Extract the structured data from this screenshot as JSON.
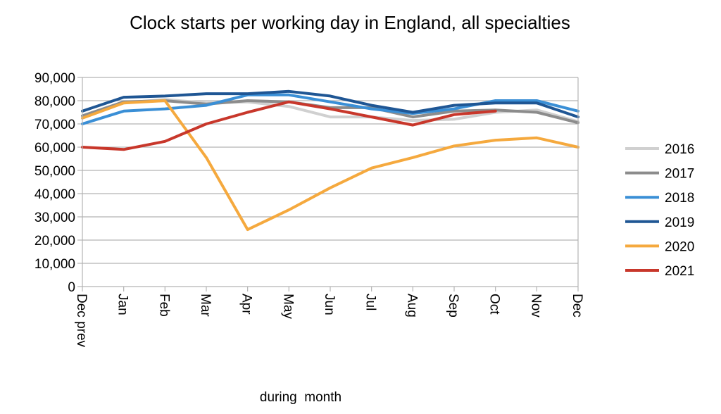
{
  "chart_data": {
    "type": "line",
    "title": "Clock starts per working day in England, all specialties",
    "xlabel": "during  month",
    "ylabel": "",
    "categories": [
      "Dec prev",
      "Jan",
      "Feb",
      "Mar",
      "Apr",
      "May",
      "Jun",
      "Jul",
      "Aug",
      "Sep",
      "Oct",
      "Nov",
      "Dec"
    ],
    "y_ticks": [
      "0",
      "10,000",
      "20,000",
      "30,000",
      "40,000",
      "50,000",
      "60,000",
      "70,000",
      "80,000",
      "90,000"
    ],
    "ylim": [
      0,
      90000
    ],
    "grid": "horizontal",
    "legend_position": "right",
    "series": [
      {
        "name": "2016",
        "color": "#d0d0d0",
        "values": [
          73500,
          79000,
          80500,
          79000,
          79500,
          77500,
          73000,
          73000,
          71500,
          72000,
          75000,
          76000,
          71000
        ]
      },
      {
        "name": "2017",
        "color": "#8c8c8c",
        "values": [
          73500,
          79500,
          80000,
          78500,
          80000,
          79500,
          77000,
          77000,
          73000,
          75500,
          76000,
          75000,
          70500
        ]
      },
      {
        "name": "2018",
        "color": "#3a8fd6",
        "values": [
          70000,
          75500,
          76500,
          78000,
          82500,
          82500,
          79500,
          76500,
          74500,
          76500,
          80000,
          80000,
          75500
        ]
      },
      {
        "name": "2019",
        "color": "#1f5694",
        "values": [
          75500,
          81500,
          82000,
          83000,
          83000,
          84000,
          82000,
          78000,
          75000,
          78000,
          79000,
          79000,
          73000
        ]
      },
      {
        "name": "2020",
        "color": "#f5a93e",
        "values": [
          72500,
          79000,
          80000,
          55500,
          24500,
          33000,
          42500,
          51000,
          55500,
          60500,
          63000,
          64000,
          60000
        ]
      },
      {
        "name": "2021",
        "color": "#c8372b",
        "values": [
          60000,
          59000,
          62500,
          70000,
          75000,
          79500,
          76500,
          73000,
          69500,
          74000,
          75500,
          null,
          null
        ]
      }
    ]
  }
}
